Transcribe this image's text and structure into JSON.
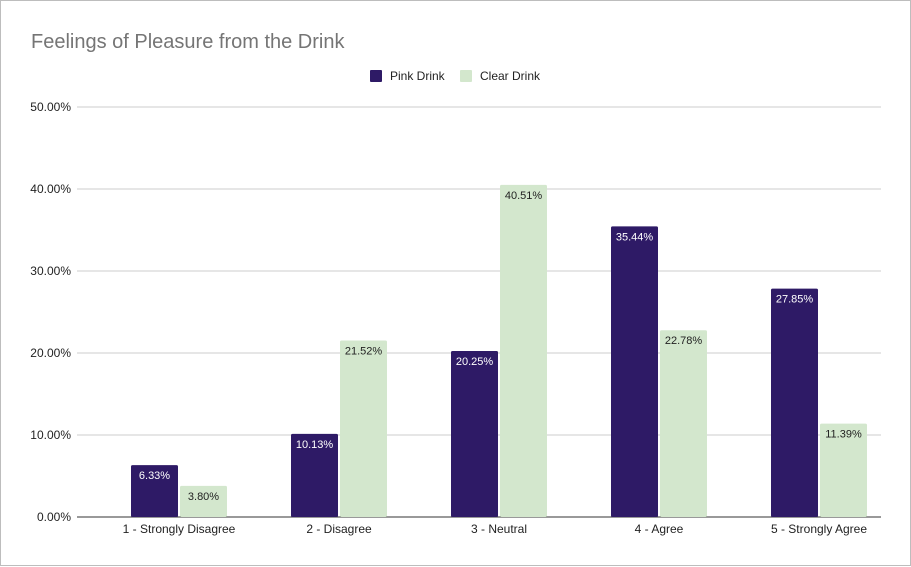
{
  "chart_data": {
    "type": "bar",
    "title": "Feelings of Pleasure from the Drink",
    "xlabel": "",
    "ylabel": "",
    "categories": [
      "1 - Strongly Disagree",
      "2 - Disagree",
      "3 - Neutral",
      "4 - Agree",
      "5 - Strongly Agree"
    ],
    "series": [
      {
        "name": "Pink Drink",
        "color": "#2e1a66",
        "label_color": "#ffffff",
        "values": [
          6.33,
          10.13,
          20.25,
          35.44,
          27.85
        ],
        "labels": [
          "6.33%",
          "10.13%",
          "20.25%",
          "35.44%",
          "27.85%"
        ]
      },
      {
        "name": "Clear Drink",
        "color": "#d3e7cd",
        "label_color": "#222222",
        "values": [
          3.8,
          21.52,
          40.51,
          22.78,
          11.39
        ],
        "labels": [
          "3.80%",
          "21.52%",
          "40.51%",
          "22.78%",
          "11.39%"
        ]
      }
    ],
    "ylim": [
      0,
      50
    ],
    "yticks": [
      0,
      10,
      20,
      30,
      40,
      50
    ],
    "ytick_labels": [
      "0.00%",
      "10.00%",
      "20.00%",
      "30.00%",
      "40.00%",
      "50.00%"
    ],
    "grid": true,
    "legend_position": "top-center"
  }
}
